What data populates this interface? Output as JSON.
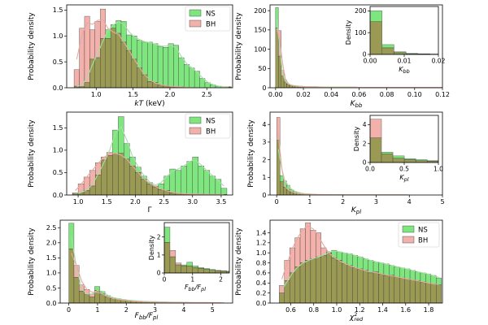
{
  "colors": {
    "ns": "#7fe67f",
    "bh": "#f2b1ab",
    "overlap": "#9b9a55",
    "edge": "#333333",
    "kde_ns": "#a6dfa6",
    "kde_bh": "#e8a9a3"
  },
  "legend": {
    "ns": "NS",
    "bh": "BH"
  },
  "chart_data": [
    {
      "id": "kT",
      "type": "histogram",
      "xlabel": "kT (keV)",
      "ylabel": "Probability density",
      "xlim": [
        0.6,
        2.85
      ],
      "ylim": [
        0,
        1.6
      ],
      "xticks": [
        "1.0",
        "1.5",
        "2.0",
        "2.5"
      ],
      "xtick_values": [
        1.0,
        1.5,
        2.0,
        2.5
      ],
      "yticks": [
        "0.0",
        "0.5",
        "1.0",
        "1.5"
      ],
      "ytick_values": [
        0.0,
        0.5,
        1.0,
        1.5
      ],
      "legend": "top-right",
      "bins": {
        "start": 0.7,
        "width": 0.071
      },
      "series": [
        {
          "name": "BH",
          "values": [
            0.35,
            1.15,
            1.38,
            1.12,
            1.28,
            1.52,
            0.95,
            1.15,
            1.05,
            0.88,
            0.72,
            0.55,
            0.38,
            0.25,
            0.12,
            0.1,
            0.05,
            0.04,
            0.03,
            0.02,
            0.02,
            0,
            0,
            0,
            0,
            0,
            0,
            0,
            0,
            0.01
          ]
        },
        {
          "name": "NS",
          "values": [
            0.03,
            0.02,
            0.1,
            0.55,
            0.58,
            0.95,
            1.12,
            1.22,
            1.3,
            1.28,
            1.02,
            1.0,
            0.92,
            0.88,
            0.88,
            0.85,
            0.8,
            0.78,
            0.85,
            0.82,
            0.58,
            0.45,
            0.38,
            0.32,
            0.18,
            0.1,
            0.06,
            0.03,
            0.02,
            0.02
          ]
        }
      ]
    },
    {
      "id": "Kbb",
      "type": "histogram",
      "xlabel": "Kbb",
      "ylabel": "Probability density",
      "xlim": [
        -0.004,
        0.12
      ],
      "ylim": [
        0,
        215
      ],
      "xticks": [
        "0.00",
        "0.02",
        "0.04",
        "0.06",
        "0.08",
        "0.10",
        "0.12"
      ],
      "xtick_values": [
        0,
        0.02,
        0.04,
        0.06,
        0.08,
        0.1,
        0.12
      ],
      "yticks": [
        "0",
        "50",
        "100",
        "150",
        "200"
      ],
      "ytick_values": [
        0,
        50,
        100,
        150,
        200
      ],
      "bins": {
        "start": 0.0,
        "width": 0.002
      },
      "series": [
        {
          "name": "NS",
          "values": [
            208,
            82,
            30,
            15,
            9,
            7,
            6,
            5,
            4,
            4,
            3,
            3,
            3,
            3,
            3,
            2,
            2,
            2,
            2,
            2,
            2,
            2,
            2,
            2,
            2,
            2,
            2,
            2,
            2,
            1,
            1,
            1,
            1,
            1,
            1,
            1,
            1,
            1,
            1,
            1,
            1,
            1,
            1,
            1,
            1,
            1,
            1,
            1,
            1,
            1,
            1,
            1,
            1,
            1,
            1,
            1,
            1,
            1,
            1,
            1
          ]
        },
        {
          "name": "BH",
          "values": [
            155,
            148,
            45,
            20,
            10,
            6,
            5,
            4,
            3,
            3,
            2,
            2,
            2,
            2,
            2,
            2,
            2,
            1,
            1,
            1,
            1,
            1,
            1,
            1,
            1,
            1,
            1,
            1,
            1,
            1,
            1,
            1,
            1,
            1,
            1,
            1,
            1,
            1,
            1,
            1,
            1,
            1,
            1,
            1,
            1,
            1,
            1,
            1,
            1,
            1,
            1,
            1,
            1,
            1,
            1,
            1,
            1,
            1,
            1,
            1
          ]
        }
      ],
      "inset": {
        "xlabel": "Kbb",
        "ylabel": "Density",
        "xlim": [
          0,
          0.02
        ],
        "ylim": [
          0,
          220
        ],
        "xticks": [
          "0.00",
          "0.01",
          "0.02"
        ],
        "xtick_values": [
          0,
          0.01,
          0.02
        ],
        "yticks": [
          "0",
          "100",
          "200"
        ],
        "ytick_values": [
          0,
          100,
          200
        ],
        "bins": {
          "start": 0.0,
          "width": 0.0035
        },
        "series": [
          {
            "name": "NS",
            "values": [
              200,
              45,
              12,
              5,
              3,
              2
            ]
          },
          {
            "name": "BH",
            "values": [
              150,
              30,
              8,
              3,
              2,
              1
            ]
          }
        ]
      }
    },
    {
      "id": "Gamma",
      "type": "histogram",
      "xlabel": "Γ",
      "ylabel": "Probability density",
      "xlim": [
        0.8,
        3.7
      ],
      "ylim": [
        0,
        1.85
      ],
      "xticks": [
        "1.0",
        "1.5",
        "2.0",
        "2.5",
        "3.0",
        "3.5"
      ],
      "xtick_values": [
        1.0,
        1.5,
        2.0,
        2.5,
        3.0,
        3.5
      ],
      "yticks": [
        "0.0",
        "0.5",
        "1.0",
        "1.5"
      ],
      "ytick_values": [
        0.0,
        0.5,
        1.0,
        1.5
      ],
      "legend": "top-right",
      "bins": {
        "start": 0.9,
        "width": 0.1
      },
      "series": [
        {
          "name": "BH",
          "values": [
            0.05,
            0.25,
            0.4,
            0.55,
            0.72,
            0.85,
            0.95,
            0.92,
            0.93,
            0.8,
            0.65,
            0.5,
            0.35,
            0.25,
            0.2,
            0.12,
            0.1,
            0.05,
            0.04,
            0.03,
            0.02,
            0.02,
            0.02,
            0.01,
            0.01,
            0.01,
            0.01
          ]
        },
        {
          "name": "NS",
          "values": [
            0.02,
            0.05,
            0.1,
            0.2,
            0.45,
            0.78,
            0.88,
            1.45,
            1.75,
            1.15,
            0.85,
            0.62,
            0.42,
            0.28,
            0.18,
            0.25,
            0.42,
            0.58,
            0.55,
            0.65,
            0.75,
            0.85,
            0.65,
            0.55,
            0.42,
            0.35,
            0.15
          ]
        }
      ]
    },
    {
      "id": "Kpl",
      "type": "histogram",
      "xlabel": "Kpl",
      "ylabel": "Probability density",
      "xlim": [
        -0.2,
        5.0
      ],
      "ylim": [
        0,
        4.7
      ],
      "xticks": [
        "0",
        "1",
        "2",
        "3",
        "4",
        "5"
      ],
      "xtick_values": [
        0,
        1,
        2,
        3,
        4,
        5
      ],
      "yticks": [
        "0",
        "1",
        "2",
        "3",
        "4"
      ],
      "ytick_values": [
        0,
        1,
        2,
        3,
        4
      ],
      "bins": {
        "start": 0.0,
        "width": 0.1
      },
      "series": [
        {
          "name": "NS",
          "values": [
            3.1,
            1.1,
            0.8,
            0.55,
            0.3,
            0.2,
            0.15,
            0.1,
            0.08,
            0.06,
            0.05,
            0.04,
            0.03,
            0.03,
            0.02,
            0.02,
            0.02,
            0.02,
            0.02,
            0.02,
            0.01,
            0.01,
            0.01,
            0.01,
            0.01,
            0.01,
            0.01,
            0.01,
            0.01,
            0.01,
            0.01,
            0.01,
            0.01,
            0.01,
            0.01,
            0.01,
            0.01,
            0.01,
            0.01,
            0.01
          ]
        },
        {
          "name": "BH",
          "values": [
            4.4,
            0.75,
            0.45,
            0.28,
            0.18,
            0.12,
            0.08,
            0.06,
            0.05,
            0.04,
            0.03,
            0.03,
            0.02,
            0.02,
            0.02,
            0.02,
            0.01,
            0.01,
            0.01,
            0.01,
            0.01,
            0.01,
            0.01,
            0.01,
            0.01,
            0.01,
            0.01,
            0.01,
            0.01,
            0.01,
            0.01,
            0.01,
            0.01,
            0.01,
            0.01,
            0.01,
            0.01,
            0.01,
            0.01,
            0.01
          ]
        }
      ],
      "inset": {
        "xlabel": "Kpl",
        "ylabel": "Density",
        "xlim": [
          0,
          1.0
        ],
        "ylim": [
          0,
          5
        ],
        "xticks": [
          "0.0",
          "0.5",
          "1.0"
        ],
        "xtick_values": [
          0,
          0.5,
          1.0
        ],
        "yticks": [
          "0",
          "2",
          "4"
        ],
        "ytick_values": [
          0,
          2,
          4
        ],
        "bins": {
          "start": 0.0,
          "width": 0.167
        },
        "series": [
          {
            "name": "NS",
            "values": [
              2.6,
              1.1,
              0.7,
              0.4,
              0.3,
              0.2
            ]
          },
          {
            "name": "BH",
            "values": [
              4.6,
              0.9,
              0.45,
              0.3,
              0.2,
              0.15
            ]
          }
        ]
      }
    },
    {
      "id": "ratio",
      "type": "histogram",
      "xlabel": "Fbb/Fpl",
      "ylabel": "Probability density",
      "xlim": [
        -0.3,
        5.7
      ],
      "ylim": [
        0,
        2.75
      ],
      "xticks": [
        "0",
        "1",
        "2",
        "3",
        "4",
        "5"
      ],
      "xtick_values": [
        0,
        1,
        2,
        3,
        4,
        5
      ],
      "yticks": [
        "0.0",
        "0.5",
        "1.0",
        "1.5",
        "2.0",
        "2.5"
      ],
      "ytick_values": [
        0,
        0.5,
        1.0,
        1.5,
        2.0,
        2.5
      ],
      "bins": {
        "start": 0.0,
        "width": 0.18
      },
      "series": [
        {
          "name": "NS",
          "values": [
            2.65,
            0.85,
            0.4,
            0.28,
            0.2,
            0.55,
            0.38,
            0.25,
            0.18,
            0.15,
            0.12,
            0.1,
            0.08,
            0.07,
            0.06,
            0.05,
            0.05,
            0.04,
            0.04,
            0.03,
            0.03,
            0.03,
            0.03,
            0.02,
            0.02,
            0.02,
            0.02,
            0.02,
            0.01,
            0.01
          ]
        },
        {
          "name": "BH",
          "values": [
            1.8,
            1.25,
            0.6,
            0.45,
            0.3,
            0.42,
            0.3,
            0.2,
            0.15,
            0.12,
            0.1,
            0.08,
            0.06,
            0.05,
            0.04,
            0.04,
            0.03,
            0.03,
            0.02,
            0.02,
            0.02,
            0.02,
            0.02,
            0.01,
            0.01,
            0.01,
            0.01,
            0.01,
            0.01,
            0.01
          ]
        }
      ],
      "inset": {
        "xlabel": "Fbb/Fpl",
        "ylabel": "Density",
        "xlim": [
          0,
          2.3
        ],
        "ylim": [
          0,
          2.8
        ],
        "xticks": [
          "0",
          "1",
          "2"
        ],
        "xtick_values": [
          0,
          1,
          2
        ],
        "yticks": [
          "0",
          "1",
          "2"
        ],
        "ytick_values": [
          0,
          1,
          2
        ],
        "bins": {
          "start": 0.0,
          "width": 0.2
        },
        "series": [
          {
            "name": "NS",
            "values": [
              2.55,
              0.9,
              0.45,
              0.45,
              0.6,
              0.4,
              0.3,
              0.25,
              0.2,
              0.15,
              0.12,
              0.1
            ]
          },
          {
            "name": "BH",
            "values": [
              1.7,
              1.25,
              0.55,
              0.4,
              0.4,
              0.3,
              0.25,
              0.2,
              0.15,
              0.12,
              0.1,
              0.08
            ]
          }
        ]
      }
    },
    {
      "id": "chi2",
      "type": "histogram",
      "xlabel": "χ²red",
      "ylabel": "Probability density",
      "xlim": [
        0.42,
        1.92
      ],
      "ylim": [
        0,
        1.65
      ],
      "xticks": [
        "0.6",
        "0.8",
        "1.0",
        "1.2",
        "1.4",
        "1.6",
        "1.8"
      ],
      "xtick_values": [
        0.6,
        0.8,
        1.0,
        1.2,
        1.4,
        1.6,
        1.8
      ],
      "yticks": [
        "0.0",
        "0.2",
        "0.4",
        "0.6",
        "0.8",
        "1.0",
        "1.2",
        "1.4"
      ],
      "ytick_values": [
        0,
        0.2,
        0.4,
        0.6,
        0.8,
        1.0,
        1.2,
        1.4
      ],
      "legend": "top-right",
      "bins": {
        "start": 0.5,
        "width": 0.0455
      },
      "series": [
        {
          "name": "BH",
          "values": [
            0.35,
            0.85,
            1.1,
            1.3,
            1.48,
            1.6,
            1.45,
            1.4,
            1.1,
            1.0,
            0.9,
            0.85,
            0.78,
            0.75,
            0.7,
            0.68,
            0.65,
            0.6,
            0.62,
            0.58,
            0.55,
            0.55,
            0.52,
            0.5,
            0.48,
            0.46,
            0.45,
            0.42,
            0.4,
            0.38,
            0.36
          ]
        },
        {
          "name": "NS",
          "values": [
            0.2,
            0.45,
            0.6,
            0.72,
            0.8,
            0.85,
            0.88,
            0.92,
            0.95,
            1.02,
            1.05,
            1.02,
            1.0,
            0.98,
            0.95,
            0.92,
            0.88,
            0.85,
            0.82,
            0.8,
            0.78,
            0.75,
            0.72,
            0.7,
            0.68,
            0.65,
            0.62,
            0.6,
            0.58,
            0.55,
            0.5
          ]
        }
      ]
    }
  ]
}
